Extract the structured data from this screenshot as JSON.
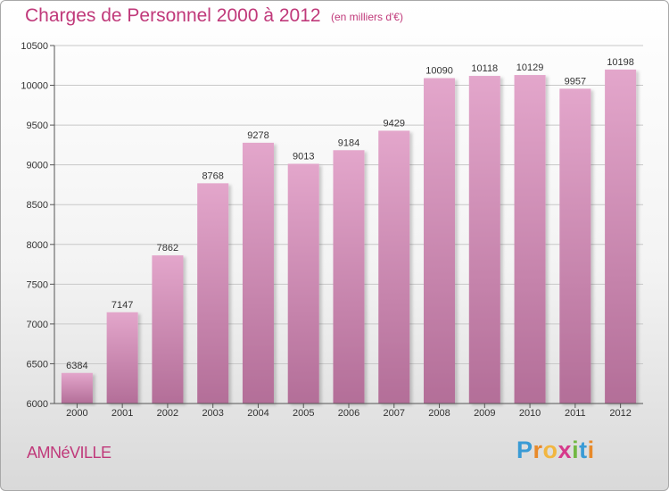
{
  "header": {
    "title": "Charges de Personnel 2000 à 2012",
    "subtitle": "(en milliers d'€)"
  },
  "footer": {
    "town": "AMNéVILLE",
    "logo_letters": [
      "P",
      "r",
      "o",
      "x",
      "i",
      "t",
      "i"
    ],
    "logo_colors": [
      "#3a9bd5",
      "#e88a2a",
      "#f2b640",
      "#d63a8b",
      "#72b843",
      "#3a9bd5",
      "#e88a2a"
    ]
  },
  "colors": {
    "title": "#c0397a",
    "bar_top": "#e3a6cb",
    "bar_bottom": "#b36e98"
  },
  "chart_data": {
    "type": "bar",
    "categories": [
      "2000",
      "2001",
      "2002",
      "2003",
      "2004",
      "2005",
      "2006",
      "2007",
      "2008",
      "2009",
      "2010",
      "2011",
      "2012"
    ],
    "values": [
      6384,
      7147,
      7862,
      8768,
      9278,
      9013,
      9184,
      9429,
      10090,
      10118,
      10129,
      9957,
      10198
    ],
    "ylim": [
      6000,
      10500
    ],
    "yticks": [
      6000,
      6500,
      7000,
      7500,
      8000,
      8500,
      9000,
      9500,
      10000,
      10500
    ],
    "xlabel": "",
    "ylabel": "",
    "grid": true,
    "data_labels": true
  }
}
